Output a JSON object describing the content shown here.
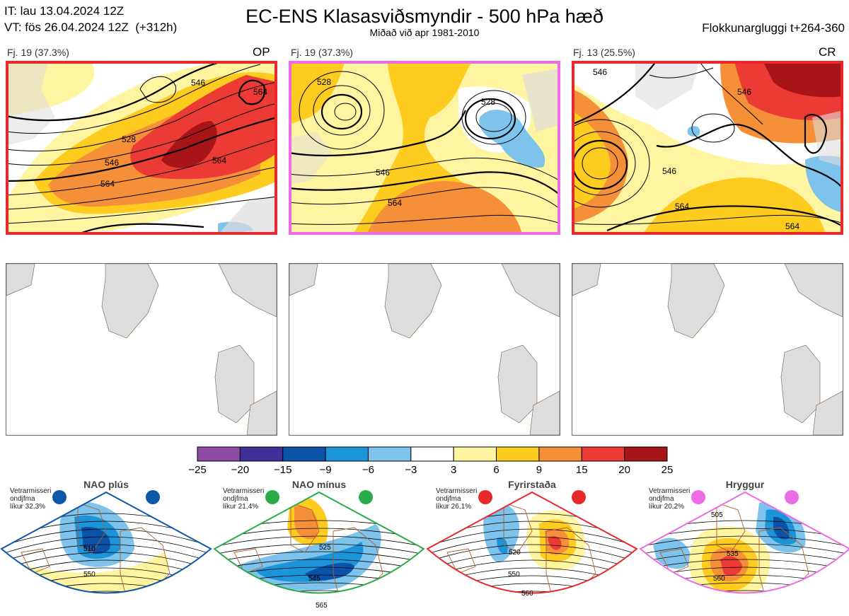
{
  "header": {
    "it_line": "IT: lau 13.04.2024 12Z",
    "vt_line": "VT: fös 26.04.2024 12Z  (+312h)",
    "title": "EC-ENS Klasasviðsmyndir - 500 hPa hæð",
    "subtitle": "Miðað við apr 1981-2010",
    "window": "Flokkunargluggi t+264-360"
  },
  "panels": [
    {
      "label": "Fj. 19 (37.3%)",
      "tag": "OP",
      "frame_color": "#e8282b",
      "contours": [
        "528",
        "546",
        "546",
        "564",
        "564",
        "564"
      ]
    },
    {
      "label": "Fj. 19 (37.3%)",
      "tag": "",
      "frame_color": "#ee6be6",
      "contours": [
        "528",
        "546",
        "564",
        "528"
      ]
    },
    {
      "label": "Fj. 13 (25.5%)",
      "tag": "CR",
      "frame_color": "#e8282b",
      "contours": [
        "546",
        "546",
        "564",
        "564",
        "546"
      ]
    }
  ],
  "colorbar": {
    "colors": [
      "#8c4aa3",
      "#42309a",
      "#0a53a8",
      "#1b94d9",
      "#7ec3eb",
      "#ffffff",
      "#fff49f",
      "#fecb1f",
      "#f69038",
      "#ec3a34",
      "#a81519"
    ],
    "labels": [
      "−25",
      "−20",
      "−15",
      "−9",
      "−6",
      "−3",
      "3",
      "6",
      "9",
      "15",
      "20",
      "25"
    ]
  },
  "regimes": [
    {
      "title": "NAO plús",
      "note": [
        "Vetrarmisseri",
        "ondjfma",
        "líkur 32,3%"
      ],
      "color": "#0d57a8",
      "contours": [
        "510",
        "550"
      ]
    },
    {
      "title": "NAO mínus",
      "note": [
        "Vetrarmisseri",
        "ondjfma",
        "líkur 21,4%"
      ],
      "color": "#2bab4a",
      "contours": [
        "525",
        "545",
        "565"
      ]
    },
    {
      "title": "Fyrirstaða",
      "note": [
        "Vetrarmisseri",
        "ondjfma",
        "líkur 26,1%"
      ],
      "color": "#e8282b",
      "contours": [
        "520",
        "550",
        "560"
      ]
    },
    {
      "title": "Hryggur",
      "note": [
        "Vetrarmisseri",
        "ondjfma",
        "líkur 20,2%"
      ],
      "color": "#ee6be6",
      "contours": [
        "505",
        "535",
        "560"
      ]
    }
  ]
}
